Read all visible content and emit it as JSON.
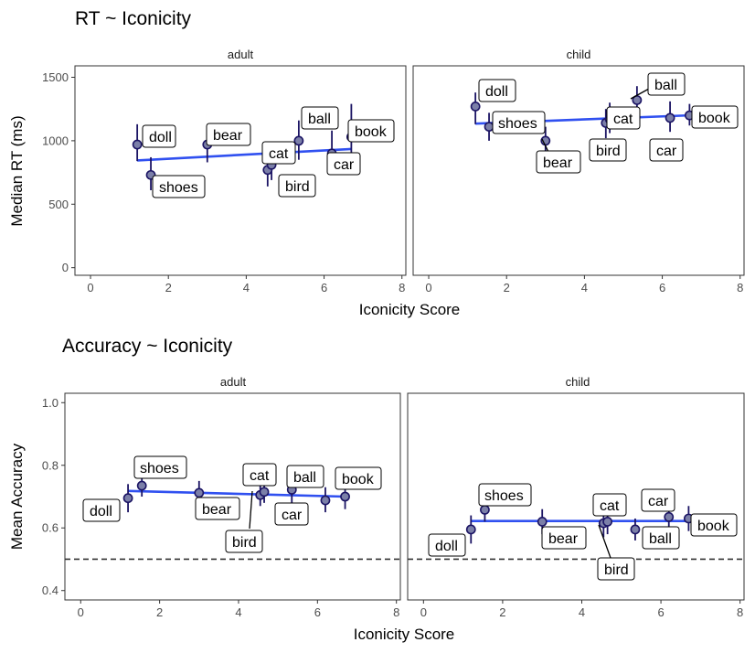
{
  "chart_data": [
    {
      "type": "scatter",
      "title": "RT ~ Iconicity",
      "xlabel": "Iconicity Score",
      "ylabel": "Median RT (ms)",
      "xlim": [
        -0.4,
        8.1
      ],
      "ylim": [
        -60,
        1590
      ],
      "xticks": [
        0,
        2,
        4,
        6,
        8
      ],
      "yticks": [
        0,
        500,
        1000,
        1500
      ],
      "xtick_labels": [
        "0",
        "2",
        "4",
        "6",
        "8"
      ],
      "ytick_labels": [
        "0",
        "500",
        "1000",
        "1500"
      ],
      "grid": false,
      "reference_line": null,
      "facets": [
        {
          "name": "adult",
          "points": [
            {
              "label": "doll",
              "x": 1.2,
              "y": 970,
              "lo": 840,
              "hi": 1130
            },
            {
              "label": "shoes",
              "x": 1.55,
              "y": 730,
              "lo": 610,
              "hi": 870
            },
            {
              "label": "bear",
              "x": 3.0,
              "y": 970,
              "lo": 830,
              "hi": 1110
            },
            {
              "label": "bird",
              "x": 4.55,
              "y": 770,
              "lo": 640,
              "hi": 920
            },
            {
              "label": "cat",
              "x": 4.65,
              "y": 810,
              "lo": 690,
              "hi": 950
            },
            {
              "label": "ball",
              "x": 5.35,
              "y": 1000,
              "lo": 850,
              "hi": 1160
            },
            {
              "label": "car",
              "x": 6.2,
              "y": 900,
              "lo": 780,
              "hi": 1080
            },
            {
              "label": "book",
              "x": 6.7,
              "y": 1030,
              "lo": 820,
              "hi": 1290
            }
          ],
          "trend": {
            "x": [
              1.2,
              6.7
            ],
            "y": [
              845,
              935
            ]
          }
        },
        {
          "name": "child",
          "points": [
            {
              "label": "doll",
              "x": 1.2,
              "y": 1270,
              "lo": 1130,
              "hi": 1380
            },
            {
              "label": "shoes",
              "x": 1.55,
              "y": 1110,
              "lo": 1000,
              "hi": 1220
            },
            {
              "label": "bear",
              "x": 3.0,
              "y": 1000,
              "lo": 890,
              "hi": 1110
            },
            {
              "label": "bird",
              "x": 4.55,
              "y": 1140,
              "lo": 1020,
              "hi": 1250
            },
            {
              "label": "cat",
              "x": 4.65,
              "y": 1170,
              "lo": 1060,
              "hi": 1300
            },
            {
              "label": "ball",
              "x": 5.35,
              "y": 1320,
              "lo": 1220,
              "hi": 1430
            },
            {
              "label": "car",
              "x": 6.2,
              "y": 1180,
              "lo": 1070,
              "hi": 1310
            },
            {
              "label": "book",
              "x": 6.7,
              "y": 1200,
              "lo": 1120,
              "hi": 1290
            }
          ],
          "trend": {
            "x": [
              1.2,
              6.7
            ],
            "y": [
              1135,
              1200
            ]
          }
        }
      ]
    },
    {
      "type": "scatter",
      "title": "Accuracy ~ Iconicity",
      "xlabel": "Iconicity Score",
      "ylabel": "Mean Accuracy",
      "xlim": [
        -0.4,
        8.1
      ],
      "ylim": [
        0.37,
        1.03
      ],
      "xticks": [
        0,
        2,
        4,
        6,
        8
      ],
      "yticks": [
        0.4,
        0.6,
        0.8,
        1.0
      ],
      "xtick_labels": [
        "0",
        "2",
        "4",
        "6",
        "8"
      ],
      "ytick_labels": [
        "0.4",
        "0.6",
        "0.8",
        "1.0"
      ],
      "grid": false,
      "reference_line": 0.5,
      "facets": [
        {
          "name": "adult",
          "points": [
            {
              "label": "doll",
              "x": 1.2,
              "y": 0.695,
              "lo": 0.65,
              "hi": 0.74
            },
            {
              "label": "shoes",
              "x": 1.55,
              "y": 0.735,
              "lo": 0.7,
              "hi": 0.77
            },
            {
              "label": "bear",
              "x": 3.0,
              "y": 0.712,
              "lo": 0.67,
              "hi": 0.75
            },
            {
              "label": "bird",
              "x": 4.55,
              "y": 0.705,
              "lo": 0.67,
              "hi": 0.74
            },
            {
              "label": "cat",
              "x": 4.65,
              "y": 0.715,
              "lo": 0.68,
              "hi": 0.75
            },
            {
              "label": "ball",
              "x": 5.35,
              "y": 0.722,
              "lo": 0.68,
              "hi": 0.76
            },
            {
              "label": "car",
              "x": 6.2,
              "y": 0.688,
              "lo": 0.65,
              "hi": 0.73
            },
            {
              "label": "book",
              "x": 6.7,
              "y": 0.7,
              "lo": 0.66,
              "hi": 0.74
            }
          ],
          "trend": {
            "x": [
              1.2,
              6.7
            ],
            "y": [
              0.718,
              0.7
            ]
          }
        },
        {
          "name": "child",
          "points": [
            {
              "label": "doll",
              "x": 1.2,
              "y": 0.595,
              "lo": 0.55,
              "hi": 0.64
            },
            {
              "label": "shoes",
              "x": 1.55,
              "y": 0.658,
              "lo": 0.62,
              "hi": 0.7
            },
            {
              "label": "bear",
              "x": 3.0,
              "y": 0.62,
              "lo": 0.58,
              "hi": 0.66
            },
            {
              "label": "bird",
              "x": 4.55,
              "y": 0.615,
              "lo": 0.57,
              "hi": 0.66
            },
            {
              "label": "cat",
              "x": 4.65,
              "y": 0.62,
              "lo": 0.58,
              "hi": 0.66
            },
            {
              "label": "ball",
              "x": 5.35,
              "y": 0.595,
              "lo": 0.56,
              "hi": 0.63
            },
            {
              "label": "car",
              "x": 6.2,
              "y": 0.635,
              "lo": 0.6,
              "hi": 0.67
            },
            {
              "label": "book",
              "x": 6.7,
              "y": 0.63,
              "lo": 0.59,
              "hi": 0.67
            }
          ],
          "trend": {
            "x": [
              1.2,
              6.7
            ],
            "y": [
              0.622,
              0.622
            ]
          }
        }
      ]
    }
  ],
  "colors": {
    "point_fill": "#7b7fa8",
    "point_stroke": "#1b1464",
    "errorbar": "#1b1464",
    "trend": "#3050f0",
    "panel_border": "#333333",
    "reference_line": "#333333"
  }
}
